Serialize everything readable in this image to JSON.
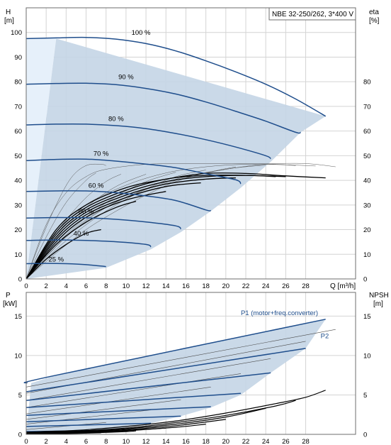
{
  "chart_data": [
    {
      "type": "line",
      "title": "NBE 32-250/262, 3*400 V",
      "ylabel_left": "H",
      "ylabel_left_unit": "[m]",
      "ylabel_right": "eta",
      "ylabel_right_unit": "[%]",
      "xlabel": "Q [m³/h]",
      "xlim": [
        0,
        33
      ],
      "ylim": [
        0,
        110
      ],
      "x_ticks": [
        0,
        2,
        4,
        6,
        8,
        10,
        12,
        14,
        16,
        18,
        20,
        22,
        24,
        26,
        28
      ],
      "y_ticks_left": [
        0,
        10,
        20,
        30,
        40,
        50,
        60,
        70,
        80,
        90,
        100
      ],
      "y_ticks_right": [
        0,
        10,
        20,
        30,
        40,
        50,
        60,
        70,
        80
      ],
      "grid": true,
      "colors": {
        "curve": "#1f4e8c",
        "area": "#c4d5e6",
        "area_left": "#e6f0fa",
        "eta": "#000000"
      },
      "series": [
        {
          "name": "100 %",
          "x": [
            0,
            3,
            6,
            9,
            12,
            15,
            18,
            21,
            24,
            27,
            30
          ],
          "values": [
            97.5,
            97.8,
            98,
            97.3,
            95.5,
            92.5,
            88.5,
            84,
            79,
            73,
            66
          ],
          "end": [
            30,
            66
          ]
        },
        {
          "name": "90 %",
          "x": [
            0,
            3,
            6,
            9,
            12,
            15,
            18,
            21,
            24,
            27
          ],
          "values": [
            79,
            79.3,
            79.4,
            78.8,
            77.3,
            75,
            71.8,
            68,
            64,
            59.5
          ],
          "end": [
            27.5,
            59.5
          ]
        },
        {
          "name": "80 %",
          "x": [
            0,
            3,
            6,
            9,
            12,
            15,
            18,
            21,
            24
          ],
          "values": [
            62.5,
            62.8,
            62.8,
            62.2,
            61,
            59,
            56.5,
            53.5,
            50
          ],
          "end": [
            24.5,
            47.5
          ]
        },
        {
          "name": "70 %",
          "x": [
            0,
            3,
            6,
            9,
            12,
            15,
            18,
            21
          ],
          "values": [
            48,
            48.5,
            48.6,
            47.8,
            46.6,
            45.1,
            42.7,
            40.2
          ],
          "end": [
            21.5,
            37
          ]
        },
        {
          "name": "60 %",
          "x": [
            0,
            3,
            6,
            9,
            12,
            15,
            18
          ],
          "values": [
            35.5,
            35.7,
            35.7,
            35,
            33.7,
            31.8,
            28
          ],
          "end": [
            18.5,
            27.5
          ]
        },
        {
          "name": "50 %",
          "x": [
            0,
            3,
            6,
            9,
            12,
            15
          ],
          "values": [
            24.7,
            24.9,
            24.8,
            24.2,
            23.1,
            21.5
          ],
          "end": [
            15.5,
            19
          ]
        },
        {
          "name": "40 %",
          "x": [
            0,
            3,
            6,
            9,
            12
          ],
          "values": [
            15.6,
            15.8,
            15.6,
            15.1,
            14
          ],
          "end": [
            12.5,
            12
          ]
        },
        {
          "name": "25 %",
          "x": [
            0,
            2,
            4,
            6,
            8
          ],
          "values": [
            6.2,
            6.3,
            6.2,
            5.8,
            5
          ],
          "end": [
            8,
            4.5
          ]
        }
      ],
      "labels": [
        {
          "text": "100 %",
          "at": [
            11.5,
            99
          ]
        },
        {
          "text": "90 %",
          "at": [
            10,
            81
          ]
        },
        {
          "text": "80 %",
          "at": [
            9,
            64
          ]
        },
        {
          "text": "70 %",
          "at": [
            7.5,
            50
          ]
        },
        {
          "text": "60 %",
          "at": [
            7,
            37
          ]
        },
        {
          "text": "50 %",
          "at": [
            6,
            26.5
          ]
        },
        {
          "text": "40 %",
          "at": [
            5.5,
            17.5
          ]
        },
        {
          "text": "25 %",
          "at": [
            3,
            7
          ]
        }
      ],
      "operating_area": [
        [
          0,
          0
        ],
        [
          3,
          97.5
        ],
        [
          30,
          66
        ],
        [
          27.5,
          59.5
        ],
        [
          24.5,
          47.5
        ],
        [
          21.5,
          37
        ],
        [
          18.5,
          27.5
        ],
        [
          15.5,
          19
        ],
        [
          12.5,
          12
        ],
        [
          8,
          4.5
        ]
      ],
      "eta_curves": [
        {
          "x": [
            0,
            3,
            6,
            10,
            14,
            18,
            22,
            26,
            30
          ],
          "values": [
            0,
            20,
            30,
            37,
            40.5,
            42.8,
            42.8,
            41.8,
            41
          ]
        },
        {
          "x": [
            0,
            3,
            6,
            10,
            14,
            18,
            22,
            26
          ],
          "values": [
            0,
            19,
            29,
            36,
            40.5,
            42,
            42,
            41.5
          ]
        },
        {
          "x": [
            0,
            3,
            6,
            10,
            14,
            18,
            22,
            25
          ],
          "values": [
            0,
            18,
            28,
            35,
            39.5,
            41.5,
            42,
            41.5
          ]
        },
        {
          "x": [
            0,
            3,
            6,
            10,
            14,
            18,
            21
          ],
          "values": [
            0,
            17,
            27,
            34,
            38.5,
            40.5,
            41
          ]
        },
        {
          "x": [
            0,
            3,
            6,
            10,
            14,
            17.5
          ],
          "values": [
            0,
            16,
            26,
            33,
            37.5,
            39
          ]
        },
        {
          "x": [
            0,
            3,
            6,
            10,
            14
          ],
          "values": [
            0,
            15,
            25,
            32,
            35.5
          ]
        },
        {
          "x": [
            0,
            3,
            6,
            9,
            11
          ],
          "values": [
            0,
            14,
            23,
            29,
            31.5
          ]
        },
        {
          "x": [
            0,
            2,
            4,
            6,
            7.5
          ],
          "values": [
            0,
            8,
            14,
            18.5,
            20
          ]
        }
      ],
      "reference_curves": [
        {
          "x": [
            0,
            2,
            4,
            6,
            8,
            12,
            16,
            20,
            24,
            28,
            31
          ],
          "values": [
            0,
            22,
            35,
            41.5,
            44.5,
            46.5,
            46.8,
            46.8,
            46.8,
            46.8,
            45.5
          ]
        },
        {
          "x": [
            0,
            3,
            6,
            10,
            14,
            18,
            22,
            26,
            29
          ],
          "values": [
            0,
            18,
            30,
            38,
            43,
            45.5,
            46.5,
            46.3,
            45.8
          ]
        },
        {
          "x": [
            0,
            4,
            8,
            12,
            16,
            20,
            24,
            27
          ],
          "values": [
            0,
            17,
            29,
            36.5,
            41.5,
            44.5,
            46.5,
            46
          ]
        },
        {
          "x": [
            0,
            5,
            10,
            15,
            20,
            24
          ],
          "values": [
            0,
            21,
            33,
            40,
            44.5,
            46.2
          ]
        },
        {
          "x": [
            0,
            3,
            6,
            9,
            12,
            15,
            18,
            21
          ],
          "values": [
            0,
            10.5,
            20,
            27.5,
            34,
            39.5,
            43,
            45.5
          ]
        },
        {
          "x": [
            0,
            3,
            6,
            9,
            12,
            15,
            18
          ],
          "values": [
            0,
            12,
            22,
            30,
            36.5,
            41.5,
            44.2
          ]
        },
        {
          "x": [
            0,
            3,
            6,
            9,
            12,
            15
          ],
          "values": [
            0,
            14,
            25,
            33.5,
            39.5,
            43.3
          ]
        },
        {
          "x": [
            0,
            3,
            6,
            9,
            12
          ],
          "values": [
            0,
            16.5,
            29,
            37.5,
            42.5
          ]
        },
        {
          "x": [
            0,
            2,
            4,
            6,
            8,
            9.5
          ],
          "values": [
            0,
            13,
            24,
            33,
            39.5,
            42.5
          ]
        },
        {
          "x": [
            0,
            2,
            4,
            6,
            7
          ],
          "values": [
            0,
            17,
            31,
            40,
            43
          ]
        },
        {
          "x": [
            0,
            1.5,
            3,
            4.5,
            6,
            7.5,
            8
          ],
          "values": [
            0,
            16,
            30,
            41,
            46,
            46.5,
            46
          ]
        }
      ]
    },
    {
      "type": "line",
      "ylabel_left": "P",
      "ylabel_left_unit": "[kW]",
      "ylabel_right": "NPSH",
      "ylabel_right_unit": "[m]",
      "xlim": [
        0,
        33
      ],
      "ylim": [
        0,
        18
      ],
      "x_ticks": [
        0,
        2,
        4,
        6,
        8,
        10,
        12,
        14,
        16,
        18,
        20,
        22,
        24,
        26,
        28
      ],
      "y_ticks_left": [
        0,
        5,
        10,
        15
      ],
      "y_ticks_right": [
        0,
        5,
        10,
        15
      ],
      "grid": true,
      "series_labels": [
        {
          "text": "P1 (motor+freq.converter)",
          "at": [
            21.5,
            15.1
          ]
        },
        {
          "text": "P2",
          "at": [
            29.5,
            12.2
          ]
        }
      ],
      "colors": {
        "curve": "#1f4e8c",
        "area": "#c4d5e6",
        "thin": "#4a4a4a",
        "npsh": "#000000"
      },
      "operating_area": [
        [
          0,
          0
        ],
        [
          0.5,
          6.5
        ],
        [
          3,
          7.5
        ],
        [
          30,
          14.6
        ],
        [
          28,
          10.9
        ],
        [
          24.5,
          7.8
        ],
        [
          21.5,
          5
        ],
        [
          18.5,
          3.4
        ],
        [
          15.5,
          2.3
        ],
        [
          12.5,
          1.4
        ],
        [
          8,
          0.5
        ]
      ],
      "p1_curves": [
        {
          "x": [
            0,
            3,
            30
          ],
          "values": [
            6.5,
            7.5,
            14.6
          ]
        },
        {
          "x": [
            0,
            28
          ],
          "values": [
            5.4,
            10.9
          ]
        },
        {
          "x": [
            0,
            24.5
          ],
          "values": [
            4.3,
            7.8
          ]
        },
        {
          "x": [
            0,
            21.5
          ],
          "values": [
            3.4,
            5.2
          ]
        },
        {
          "x": [
            0,
            18.5
          ],
          "values": [
            2.4,
            3.5
          ]
        },
        {
          "x": [
            0,
            15.5
          ],
          "values": [
            1.6,
            2.3
          ]
        },
        {
          "x": [
            0,
            12.5
          ],
          "values": [
            1,
            1.4
          ]
        },
        {
          "x": [
            0,
            8
          ],
          "values": [
            0.35,
            0.5
          ]
        }
      ],
      "p2_curves": [
        {
          "x": [
            0,
            31
          ],
          "values": [
            6,
            13.3
          ]
        },
        {
          "x": [
            0,
            28
          ],
          "values": [
            5.2,
            11.8
          ]
        },
        {
          "x": [
            0,
            24.5
          ],
          "values": [
            4.3,
            9.6
          ]
        },
        {
          "x": [
            0,
            21.5
          ],
          "values": [
            3.4,
            7.7
          ]
        },
        {
          "x": [
            0,
            18.5
          ],
          "values": [
            2.6,
            6
          ]
        },
        {
          "x": [
            0,
            15.5
          ],
          "values": [
            1.9,
            4.4
          ]
        },
        {
          "x": [
            0,
            12.5
          ],
          "values": [
            1.3,
            3.1
          ]
        },
        {
          "x": [
            0,
            8
          ],
          "values": [
            0.6,
            1.5
          ]
        }
      ],
      "npsh_curves": [
        {
          "x": [
            0,
            5,
            10,
            15,
            20,
            25,
            28,
            30
          ],
          "values": [
            0.3,
            0.5,
            1,
            1.7,
            2.7,
            3.9,
            4.7,
            5.6
          ]
        },
        {
          "x": [
            0,
            5,
            10,
            15,
            20,
            25,
            27
          ],
          "values": [
            0.2,
            0.4,
            0.8,
            1.5,
            2.4,
            3.6,
            4.3
          ]
        },
        {
          "x": [
            0,
            5,
            10,
            15,
            20,
            24
          ],
          "values": [
            0.15,
            0.35,
            0.7,
            1.3,
            2.2,
            3.3
          ]
        },
        {
          "x": [
            0,
            5,
            10,
            15,
            20
          ],
          "values": [
            0.1,
            0.3,
            0.6,
            1.1,
            1.9
          ]
        },
        {
          "x": [
            0,
            5,
            10,
            15,
            18
          ],
          "values": [
            0.1,
            0.25,
            0.5,
            0.9,
            1.3
          ]
        },
        {
          "x": [
            0,
            5,
            10,
            14
          ],
          "values": [
            0.05,
            0.2,
            0.45,
            0.8
          ]
        },
        {
          "x": [
            0,
            5,
            10,
            11
          ],
          "values": [
            0.05,
            0.15,
            0.35,
            0.45
          ]
        },
        {
          "x": [
            0,
            4,
            7.5
          ],
          "values": [
            0.05,
            0.1,
            0.2
          ]
        }
      ]
    }
  ]
}
